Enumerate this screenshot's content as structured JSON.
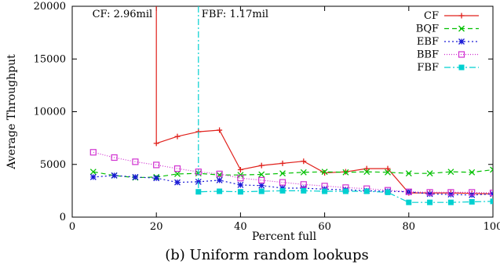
{
  "chart_data": {
    "type": "line",
    "caption": "(b) Uniform random lookups",
    "xlabel": "Percent full",
    "ylabel": "Average Throughput",
    "xlim": [
      0,
      100
    ],
    "ylim": [
      0,
      20000
    ],
    "xticks": [
      0,
      20,
      40,
      60,
      80,
      100
    ],
    "yticks": [
      0,
      5000,
      10000,
      15000,
      20000
    ],
    "grid": false,
    "legend_position": "top-right",
    "annotations": [
      {
        "text": "CF: 2.96mil",
        "x": 20,
        "color": "#e0201b"
      },
      {
        "text": "FBF: 1.17mil",
        "x": 30,
        "color": "#00c8c8"
      }
    ],
    "series": [
      {
        "name": "CF",
        "color": "#e0201b",
        "dash": "",
        "marker": "plus",
        "x": [
          20,
          20,
          25,
          30,
          35,
          40,
          45,
          50,
          55,
          60,
          65,
          70,
          75,
          80,
          85,
          90,
          95,
          100
        ],
        "y": [
          20000,
          7000,
          7650,
          8100,
          8250,
          4500,
          4900,
          5100,
          5300,
          4200,
          4300,
          4600,
          4600,
          2300,
          2300,
          2300,
          2250,
          2200
        ]
      },
      {
        "name": "BQF",
        "color": "#00c000",
        "dash": "6,4",
        "marker": "cross",
        "x": [
          5,
          10,
          15,
          20,
          25,
          30,
          35,
          40,
          45,
          50,
          55,
          60,
          65,
          70,
          75,
          80,
          85,
          90,
          95,
          100
        ],
        "y": [
          4300,
          3950,
          3750,
          3800,
          4100,
          4150,
          4000,
          4000,
          4050,
          4150,
          4250,
          4300,
          4250,
          4300,
          4250,
          4150,
          4150,
          4300,
          4250,
          4500
        ]
      },
      {
        "name": "EBF",
        "color": "#1a1ad6",
        "dash": "2,3",
        "marker": "star",
        "x": [
          5,
          10,
          15,
          20,
          25,
          30,
          35,
          40,
          45,
          50,
          55,
          60,
          65,
          70,
          75,
          80,
          85,
          90,
          95,
          100
        ],
        "y": [
          3800,
          3950,
          3800,
          3700,
          3300,
          3350,
          3500,
          3050,
          3000,
          2750,
          2750,
          2650,
          2600,
          2500,
          2450,
          2400,
          2200,
          2150,
          2100,
          2200
        ]
      },
      {
        "name": "BBF",
        "color": "#d030d0",
        "dash": "1,2",
        "marker": "square-open",
        "x": [
          5,
          10,
          15,
          20,
          25,
          30,
          35,
          40,
          45,
          50,
          55,
          60,
          65,
          70,
          75,
          80,
          85,
          90,
          95,
          100
        ],
        "y": [
          6150,
          5650,
          5250,
          4950,
          4600,
          4300,
          4100,
          3700,
          3500,
          3300,
          3100,
          2950,
          2800,
          2700,
          2550,
          2400,
          2350,
          2350,
          2350,
          2300
        ]
      },
      {
        "name": "FBF",
        "color": "#00d0d0",
        "dash": "8,3,2,3",
        "marker": "square-filled",
        "x": [
          30,
          30,
          35,
          40,
          45,
          50,
          55,
          60,
          65,
          70,
          75,
          80,
          85,
          90,
          95,
          100
        ],
        "y": [
          20000,
          2400,
          2450,
          2400,
          2450,
          2500,
          2500,
          2450,
          2450,
          2450,
          2350,
          1400,
          1400,
          1400,
          1450,
          1500
        ]
      }
    ]
  }
}
